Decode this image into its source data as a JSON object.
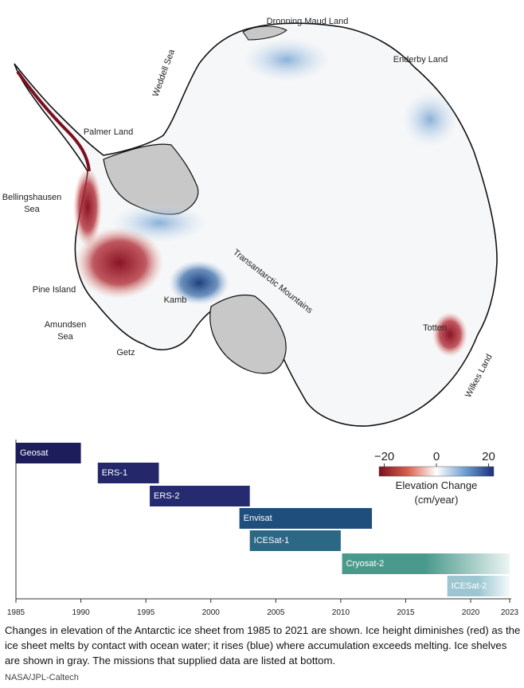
{
  "map": {
    "labels": [
      "Dronning Maud Land",
      "Enderby Land",
      "Weddell Sea",
      "Palmer Land",
      "Bellingshausen",
      "Sea",
      "Pine Island",
      "Amundsen",
      "Sea",
      "Getz",
      "Kamb",
      "Transantarctic Mountains",
      "Totten",
      "Wilkes Land"
    ]
  },
  "colorbar": {
    "title": "Elevation Change",
    "subtitle": "(cm/year)",
    "clim": [
      -22,
      22
    ],
    "ticks": [
      {
        "value": -20,
        "label": "−20"
      },
      0,
      20
    ],
    "colors": [
      "#7a1020",
      "#d9604f",
      "#ffffff",
      "#6e9fd0",
      "#1a2f7a"
    ]
  },
  "timeline": {
    "xlim": [
      1985,
      2023
    ],
    "xticks": [
      1985,
      1990,
      1995,
      2000,
      2005,
      2010,
      2015,
      2020,
      2023
    ],
    "missions": [
      {
        "name": "Geosat",
        "start": 1985,
        "end": 1990,
        "color": "#1c1d5a"
      },
      {
        "name": "ERS-1",
        "start": 1991.3,
        "end": 1996,
        "color": "#24286a"
      },
      {
        "name": "ERS-2",
        "start": 1995.3,
        "end": 2003,
        "color": "#252b6e"
      },
      {
        "name": "Envisat",
        "start": 2002.2,
        "end": 2012.4,
        "color": "#1f4d7c"
      },
      {
        "name": "ICESat-1",
        "start": 2003,
        "end": 2010,
        "color": "#2a6886"
      },
      {
        "name": "Cryosat-2",
        "start": 2010.1,
        "end": 2023,
        "color": "#4a9a8c"
      },
      {
        "name": "ICESat-2",
        "start": 2018.2,
        "end": 2023,
        "color": "#9cc7d2"
      }
    ]
  },
  "caption": "Changes in elevation of the Antarctic ice sheet from 1985 to 2021 are shown. Ice height diminishes (red) as the ice sheet melts by contact with ocean water; it rises (blue) where accumulation exceeds melting. Ice shelves are shown in gray. The missions that supplied data are listed at bottom.",
  "credit": "NASA/JPL-Caltech"
}
